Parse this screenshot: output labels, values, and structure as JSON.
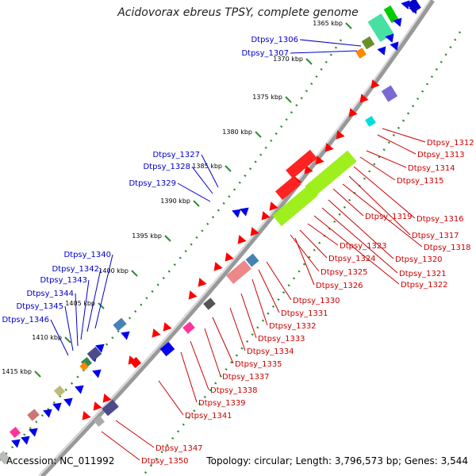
{
  "title": "Acidovorax ebreus TPSY, complete genome",
  "accession": "Accession: NC_011992",
  "topology": "Topology: circular; Length: 3,796,573 bp; Genes: 3,544",
  "colors": {
    "plus_label": "#0000cc",
    "minus_label": "#cc0000",
    "backbone": "#999999",
    "tick": "#2e8b2e"
  },
  "ticks": [
    {
      "label": "1365 kbp"
    },
    {
      "label": "1370 kbp"
    },
    {
      "label": "1375 kbp"
    },
    {
      "label": "1380 kbp"
    },
    {
      "label": "1385 kbp"
    },
    {
      "label": "1390 kbp"
    },
    {
      "label": "1395 kbp"
    },
    {
      "label": "1400 kbp"
    },
    {
      "label": "1405 kbp"
    },
    {
      "label": "1410 kbp"
    },
    {
      "label": "1415 kbp"
    }
  ],
  "plus_labels": [
    "Dtpsy_1306",
    "Dtpsy_1307",
    "Dtpsy_1327",
    "Dtpsy_1328",
    "Dtpsy_1329",
    "Dtpsy_1340",
    "Dtpsy_1342",
    "Dtpsy_1343",
    "Dtpsy_1344",
    "Dtpsy_1345",
    "Dtpsy_1346"
  ],
  "minus_labels": [
    "Dtpsy_1312",
    "Dtpsy_1313",
    "Dtpsy_1314",
    "Dtpsy_1315",
    "Dtpsy_1316",
    "Dtpsy_1317",
    "Dtpsy_1318",
    "Dtpsy_1319",
    "Dtpsy_1320",
    "Dtpsy_1321",
    "Dtpsy_1322",
    "Dtpsy_1323",
    "Dtpsy_1324",
    "Dtpsy_1325",
    "Dtpsy_1326",
    "Dtpsy_1330",
    "Dtpsy_1331",
    "Dtpsy_1332",
    "Dtpsy_1333",
    "Dtpsy_1334",
    "Dtpsy_1335",
    "Dtpsy_1337",
    "Dtpsy_1338",
    "Dtpsy_1339",
    "Dtpsy_1341",
    "Dtpsy_1347",
    "Dtpsy_1350"
  ]
}
